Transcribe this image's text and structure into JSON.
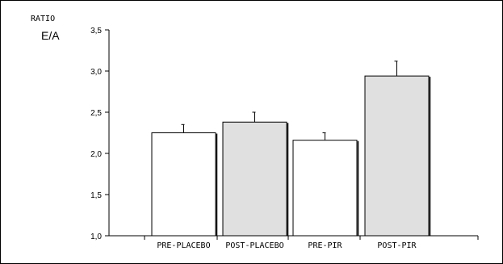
{
  "chart_data": {
    "type": "bar",
    "ylabel_top": "RATIO",
    "ylabel_main": "E/A",
    "categories": [
      "PRE-PLACEBO",
      "POST-PLACEBO",
      "PRE-PIR",
      "POST-PIR"
    ],
    "values": [
      2.25,
      2.38,
      2.16,
      2.94
    ],
    "errors": [
      0.1,
      0.12,
      0.09,
      0.18
    ],
    "fill_colors": [
      "#ffffff",
      "#e0e0e0",
      "#ffffff",
      "#e0e0e0"
    ],
    "ylim": [
      1.0,
      3.5
    ],
    "yticks": [
      "1,0",
      "1,5",
      "2,0",
      "2,5",
      "3,0",
      "3,5"
    ],
    "ytick_values": [
      1.0,
      1.5,
      2.0,
      2.5,
      3.0,
      3.5
    ],
    "grid": false,
    "legend": "none"
  }
}
